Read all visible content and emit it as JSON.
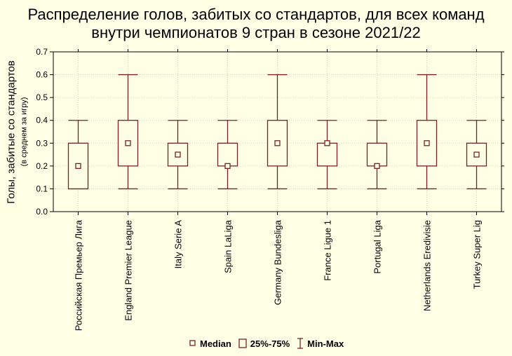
{
  "title_line1": "Распределение голов, забитых со стандартов, для всех команд",
  "title_line2": "внутри чемпионатов 9 стран в сезоне 2021/22",
  "chart_data": {
    "type": "box",
    "title": "Распределение голов, забитых со стандартов, для всех команд внутри чемпионатов 9 стран в сезоне 2021/22",
    "ylabel": "Голы, забитые со стандартов",
    "ylabel_sub": "(в среднем за игру)",
    "ylim": [
      0.0,
      0.7
    ],
    "yticks": [
      "0.0",
      "0.1",
      "0.2",
      "0.3",
      "0.4",
      "0.5",
      "0.6",
      "0.7"
    ],
    "grid": true,
    "legend_position": "bottom",
    "categories": [
      "Российская Премьер Лига",
      "England Premier League",
      "Italy Serie A",
      "Spain LaLiga",
      "Germany Bundesliga",
      "France Ligue 1",
      "Portugal Liga",
      "Netherlands Eredivisie",
      "Turkey Super Lig"
    ],
    "series": [
      {
        "name": "Median",
        "values": [
          0.2,
          0.3,
          0.25,
          0.2,
          0.3,
          0.3,
          0.2,
          0.3,
          0.25
        ]
      },
      {
        "name": "25%-75%",
        "q1": [
          0.1,
          0.2,
          0.2,
          0.2,
          0.2,
          0.2,
          0.2,
          0.2,
          0.2
        ],
        "q3": [
          0.3,
          0.4,
          0.3,
          0.3,
          0.4,
          0.3,
          0.3,
          0.4,
          0.3
        ]
      },
      {
        "name": "Min-Max",
        "min": [
          0.1,
          0.1,
          0.1,
          0.1,
          0.1,
          0.1,
          0.1,
          0.1,
          0.1
        ],
        "max": [
          0.4,
          0.6,
          0.4,
          0.4,
          0.6,
          0.4,
          0.4,
          0.6,
          0.4
        ]
      }
    ],
    "colors": {
      "box": "#7a1f28",
      "background": "#ffffe6",
      "grid": "#c8c8b4",
      "axis": "#000000"
    }
  },
  "legend": {
    "median_label": "Median",
    "box_label": "25%-75%",
    "whisker_label": "Min-Max"
  }
}
